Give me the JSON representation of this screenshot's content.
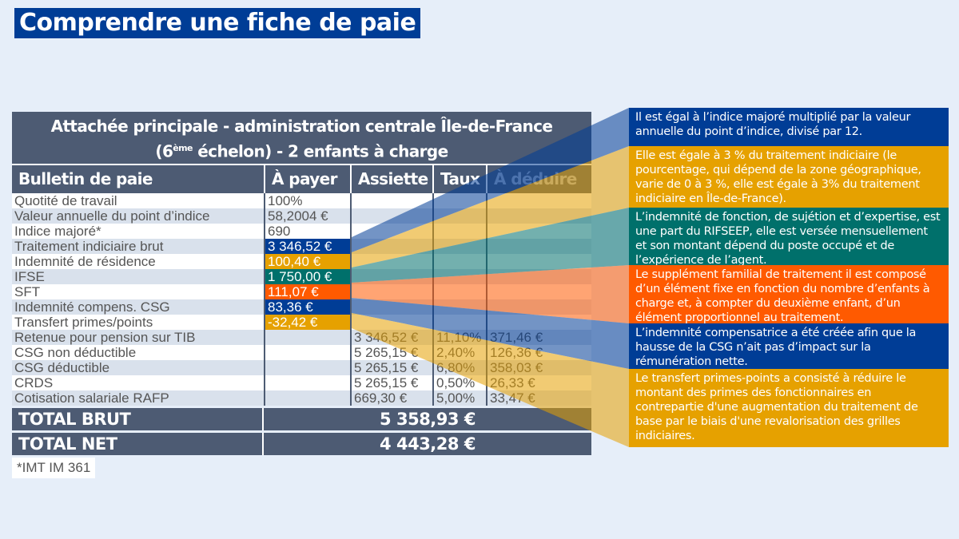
{
  "title": "Comprendre une fiche de paie",
  "table": {
    "heading_line1": "Attachée principale - administration centrale Île-de-France",
    "heading_line2_pre": "(6",
    "heading_line2_sup": "ème",
    "heading_line2_post": " échelon) - 2 enfants à charge",
    "columns": [
      "Bulletin de paie",
      "À payer",
      "Assiette",
      "Taux",
      "À déduire"
    ],
    "rows": [
      {
        "label": "Quotité de travail",
        "pay": "100%",
        "base": "",
        "rate": "",
        "deduct": ""
      },
      {
        "label": "Valeur annuelle du point d’indice",
        "pay": "58,2004 €",
        "base": "",
        "rate": "",
        "deduct": ""
      },
      {
        "label": "Indice majoré*",
        "pay": "690",
        "base": "",
        "rate": "",
        "deduct": ""
      },
      {
        "label": "Traitement indiciaire brut",
        "pay": "3 346,52 €",
        "base": "",
        "rate": "",
        "deduct": ""
      },
      {
        "label": "Indemnité de résidence",
        "pay": "100,40 €",
        "base": "",
        "rate": "",
        "deduct": ""
      },
      {
        "label": "IFSE",
        "pay": "1 750,00 €",
        "base": "",
        "rate": "",
        "deduct": ""
      },
      {
        "label": "SFT",
        "pay": "111,07 €",
        "base": "",
        "rate": "",
        "deduct": ""
      },
      {
        "label": "Indemnité compens. CSG",
        "pay": "83,36 €",
        "base": "",
        "rate": "",
        "deduct": ""
      },
      {
        "label": "Transfert primes/points",
        "pay": "-32,42 €",
        "base": "",
        "rate": "",
        "deduct": ""
      },
      {
        "label": "Retenue pour pension sur TIB",
        "pay": "",
        "base": "3 346,52 €",
        "rate": "11,10%",
        "deduct": "371,46 €"
      },
      {
        "label": "CSG non déductible",
        "pay": "",
        "base": "5 265,15 €",
        "rate": "2,40%",
        "deduct": "126,36 €"
      },
      {
        "label": "CSG déductible",
        "pay": "",
        "base": "5 265,15 €",
        "rate": "6,80%",
        "deduct": "358,03 €"
      },
      {
        "label": "CRDS",
        "pay": "",
        "base": "5 265,15 €",
        "rate": "0,50%",
        "deduct": "26,33 €"
      },
      {
        "label": "Cotisation salariale RAFP",
        "pay": "",
        "base": "669,30 €",
        "rate": "5,00%",
        "deduct": "33,47 €"
      }
    ],
    "total_brut_label": "TOTAL BRUT",
    "total_brut": "5 358,93 €",
    "total_net_label": "TOTAL NET",
    "total_net": "4 443,28 €",
    "footnote": "*IMT IM 361"
  },
  "highlight_colors": {
    "blue": "#003d96",
    "gold": "#e6a100",
    "teal": "#00706b",
    "orange": "#ff5a00"
  },
  "panels": [
    {
      "row": 3,
      "color": "#003d96",
      "text": "Il est égal à l’indice majoré multiplié par la valeur annuelle du point d’indice, divisé par 12."
    },
    {
      "row": 4,
      "color": "#e6a100",
      "text": "Elle est égale à 3 % du traitement indiciaire (le pourcentage, qui dépend de la zone géographique, varie de 0 à 3 %, elle est égale à 3% du traitement indiciaire en Île-de-France)."
    },
    {
      "row": 5,
      "color": "#00706b",
      "text": "L’indemnité de fonction, de sujétion et d’expertise, est une part du RIFSEEP, elle est versée mensuellement et son montant dépend du poste occupé et de l’expérience de l’agent."
    },
    {
      "row": 6,
      "color": "#ff5a00",
      "text": "Le supplément familial de traitement il est composé d’un élément fixe en fonction du nombre d’enfants à charge et, à compter du deuxième enfant, d’un élément proportionnel au traitement."
    },
    {
      "row": 7,
      "color": "#003d96",
      "text": "L’indemnité compensatrice a été créée afin que la hausse de la CSG n’ait pas d’impact sur la rémunération nette."
    },
    {
      "row": 8,
      "color": "#e6a100",
      "text": "Le transfert primes-points a consisté à réduire le montant des primes des fonctionnaires en contrepartie d'une augmentation du traitement de base par le biais d'une revalorisation des grilles indiciaires."
    }
  ]
}
